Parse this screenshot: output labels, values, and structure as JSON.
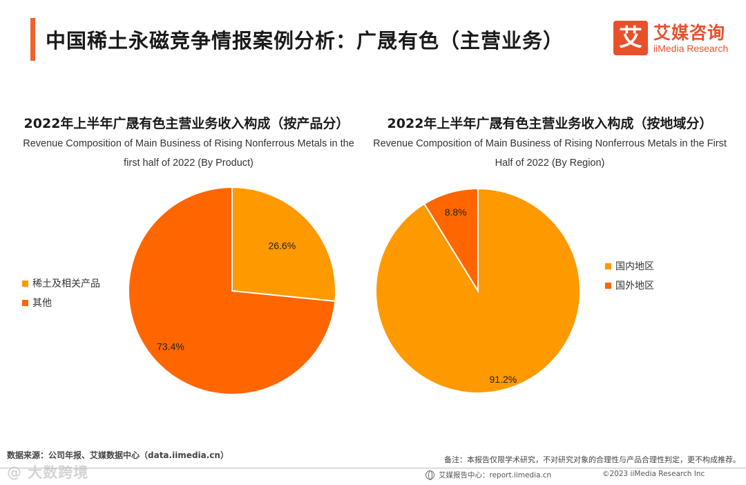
{
  "header": {
    "title": "中国稀土永磁竞争情报案例分析：广晟有色（主营业务）",
    "logo_mark": "艾",
    "logo_cn": "艾媒咨询",
    "logo_en": "iiMedia Research"
  },
  "colors": {
    "accent": "#f0612b",
    "series_primary": "#ff9900",
    "series_secondary": "#ff6600",
    "brand": "#e8502b"
  },
  "chart_data": [
    {
      "type": "pie",
      "title": "2022年上半年广晟有色主营业务收入构成（按产品分）",
      "subtitle": "Revenue Composition of Main Business of Rising Nonferrous Metals in the first half of 2022 (By Product)",
      "categories": [
        "稀土及相关产品",
        "其他"
      ],
      "values": [
        26.6,
        73.4
      ],
      "labels": [
        "26.6%",
        "73.4%"
      ],
      "legend_position": "left",
      "unit": "%"
    },
    {
      "type": "pie",
      "title": "2022年上半年广晟有色主营业务收入构成（按地域分）",
      "subtitle": "Revenue Composition of Main Business of Rising Nonferrous Metals in the First Half of 2022 (By Region)",
      "categories": [
        "国内地区",
        "国外地区"
      ],
      "values": [
        91.2,
        8.8
      ],
      "labels": [
        "91.2%",
        "8.8%"
      ],
      "legend_position": "right",
      "unit": "%"
    }
  ],
  "footer": {
    "source": "数据来源：公司年报、艾媒数据中心（data.iimedia.cn）",
    "note": "备注：本报告仅限学术研究，不对研究对象的合理性与产品合理性判定，更不构成推荐。",
    "center": "艾媒报告中心：report.iimedia.cn",
    "copyright": "©2023  iiMedia Research  Inc",
    "watermark": "@ 大数跨境"
  }
}
